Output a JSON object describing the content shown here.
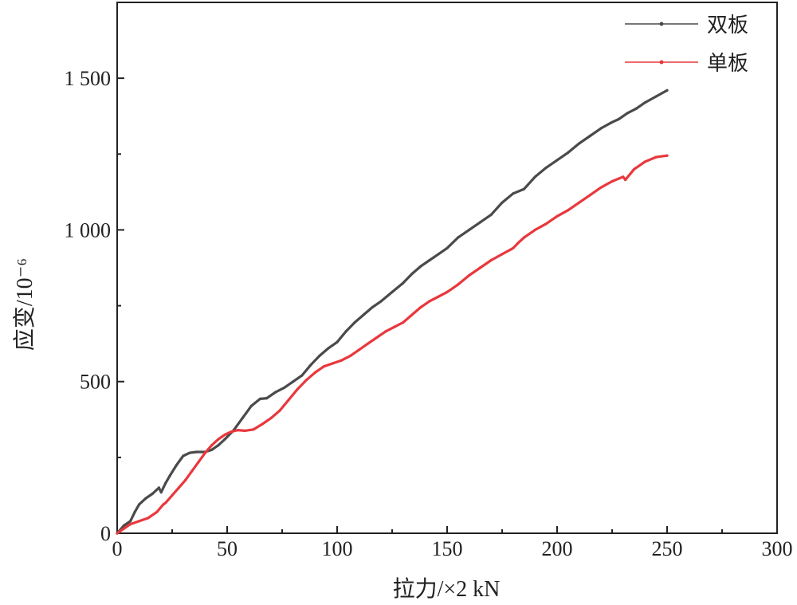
{
  "chart_data": {
    "type": "line",
    "xlabel": "拉力/×2 kN",
    "ylabel": "应变/10⁻⁶",
    "xlim": [
      0,
      300
    ],
    "ylim": [
      0,
      1750
    ],
    "xticks": [
      0,
      50,
      100,
      150,
      200,
      250,
      300
    ],
    "xtick_labels": [
      "0",
      "50",
      "100",
      "150",
      "200",
      "250",
      "300"
    ],
    "yticks": [
      0,
      500,
      1000,
      1500
    ],
    "ytick_labels": [
      "0",
      "500",
      "1 000",
      "1 500"
    ],
    "grid": false,
    "legend_position": "top-right",
    "series": [
      {
        "name": "双板",
        "color": "#4a4a4a",
        "x": [
          0,
          3,
          6,
          8,
          10,
          13,
          16,
          19,
          20,
          22,
          24,
          27,
          30,
          33,
          36,
          40,
          43,
          46,
          49,
          53,
          57,
          61,
          65,
          68,
          72,
          76,
          80,
          84,
          88,
          92,
          96,
          100,
          104,
          108,
          112,
          116,
          120,
          125,
          130,
          134,
          138,
          142,
          146,
          150,
          155,
          160,
          165,
          170,
          175,
          180,
          185,
          190,
          195,
          200,
          205,
          210,
          215,
          220,
          225,
          228,
          232,
          236,
          240,
          245,
          250
        ],
        "y": [
          0,
          25,
          40,
          70,
          95,
          115,
          130,
          150,
          135,
          165,
          190,
          225,
          255,
          265,
          268,
          268,
          275,
          290,
          310,
          340,
          380,
          420,
          443,
          445,
          465,
          480,
          500,
          520,
          555,
          585,
          610,
          630,
          665,
          695,
          720,
          745,
          765,
          795,
          825,
          855,
          880,
          900,
          920,
          940,
          975,
          1000,
          1025,
          1050,
          1090,
          1120,
          1135,
          1175,
          1205,
          1230,
          1255,
          1285,
          1310,
          1335,
          1355,
          1365,
          1385,
          1400,
          1420,
          1440,
          1460
        ]
      },
      {
        "name": "单板",
        "color": "#e8383d",
        "x": [
          0,
          3,
          6,
          10,
          14,
          18,
          21,
          22,
          25,
          28,
          31,
          34,
          37,
          40,
          43,
          46,
          49,
          52,
          55,
          58,
          62,
          66,
          70,
          74,
          78,
          82,
          86,
          90,
          94,
          98,
          102,
          106,
          110,
          114,
          118,
          122,
          126,
          130,
          134,
          138,
          142,
          146,
          150,
          155,
          160,
          165,
          170,
          175,
          180,
          182,
          185,
          190,
          195,
          200,
          205,
          210,
          215,
          220,
          225,
          230,
          231,
          235,
          240,
          245,
          250
        ],
        "y": [
          0,
          15,
          30,
          40,
          50,
          70,
          95,
          100,
          125,
          150,
          175,
          205,
          235,
          265,
          290,
          310,
          325,
          335,
          340,
          338,
          342,
          360,
          380,
          405,
          440,
          475,
          505,
          530,
          550,
          560,
          570,
          585,
          605,
          625,
          645,
          665,
          680,
          695,
          720,
          745,
          765,
          780,
          795,
          820,
          850,
          875,
          900,
          920,
          940,
          955,
          975,
          1000,
          1020,
          1045,
          1065,
          1090,
          1115,
          1140,
          1160,
          1175,
          1165,
          1200,
          1225,
          1240,
          1245
        ]
      }
    ]
  }
}
